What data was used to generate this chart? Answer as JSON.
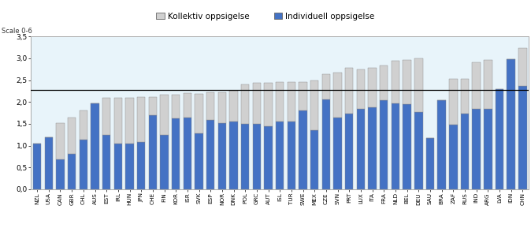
{
  "categories": [
    "NZL",
    "USA",
    "CAN",
    "GBR",
    "CHL",
    "AUS",
    "EST",
    "IRL",
    "HUN",
    "JPN",
    "CHE",
    "FIN",
    "KOR",
    "ISR",
    "SVK",
    "ESP",
    "NOR",
    "DNK",
    "POL",
    "GRC",
    "AUT",
    "ISL",
    "TUR",
    "SWE",
    "MEX",
    "CZE",
    "SVN",
    "PRT",
    "LUX",
    "ITA",
    "FRA",
    "NLD",
    "BEL",
    "DEU",
    "SAU",
    "BRA",
    "ZAF",
    "RUS",
    "IND",
    "ARG",
    "LVA",
    "IDN",
    "CHN"
  ],
  "individual": [
    1.04,
    1.19,
    0.69,
    0.82,
    1.13,
    1.97,
    1.24,
    1.05,
    1.05,
    1.08,
    1.69,
    1.25,
    1.62,
    1.65,
    1.28,
    1.59,
    1.51,
    1.55,
    1.5,
    1.5,
    1.45,
    1.55,
    1.55,
    1.8,
    1.35,
    2.05,
    1.65,
    1.74,
    1.85,
    1.88,
    2.04,
    1.96,
    1.95,
    1.77,
    1.17,
    2.04,
    1.48,
    1.73,
    1.84,
    1.84,
    2.29,
    2.98,
    2.36
  ],
  "collective": [
    0.0,
    0.0,
    0.83,
    0.83,
    0.67,
    0.0,
    0.85,
    1.05,
    1.05,
    1.03,
    0.43,
    0.91,
    0.54,
    0.56,
    0.91,
    0.64,
    0.72,
    0.7,
    0.9,
    0.93,
    0.99,
    0.9,
    0.9,
    0.65,
    1.15,
    0.58,
    1.03,
    1.05,
    0.9,
    0.9,
    0.79,
    0.99,
    1.02,
    1.22,
    0.0,
    0.0,
    1.04,
    0.79,
    1.06,
    1.13,
    0.0,
    0.0,
    0.88
  ],
  "bar_color_individual": "#4472C4",
  "bar_color_collective": "#D0D0D0",
  "hline_value": 2.27,
  "hline_color": "#000000",
  "ylim": [
    0,
    3.5
  ],
  "yticks": [
    0.0,
    0.5,
    1.0,
    1.5,
    2.0,
    2.5,
    3.0,
    3.5
  ],
  "ytick_labels": [
    "0,0",
    "0,5",
    "1,0",
    "1,5",
    "2,0",
    "2,5",
    "3,0",
    "3,5"
  ],
  "scale_label": "Scale 0-6",
  "legend_kollektiv": "Kollektiv oppsigelse",
  "legend_individuell": "Individuell oppsigelse",
  "bg_color": "#E8F4FA",
  "fig_bg_color": "#FFFFFF",
  "legend_bg_color": "#E8E8E8"
}
